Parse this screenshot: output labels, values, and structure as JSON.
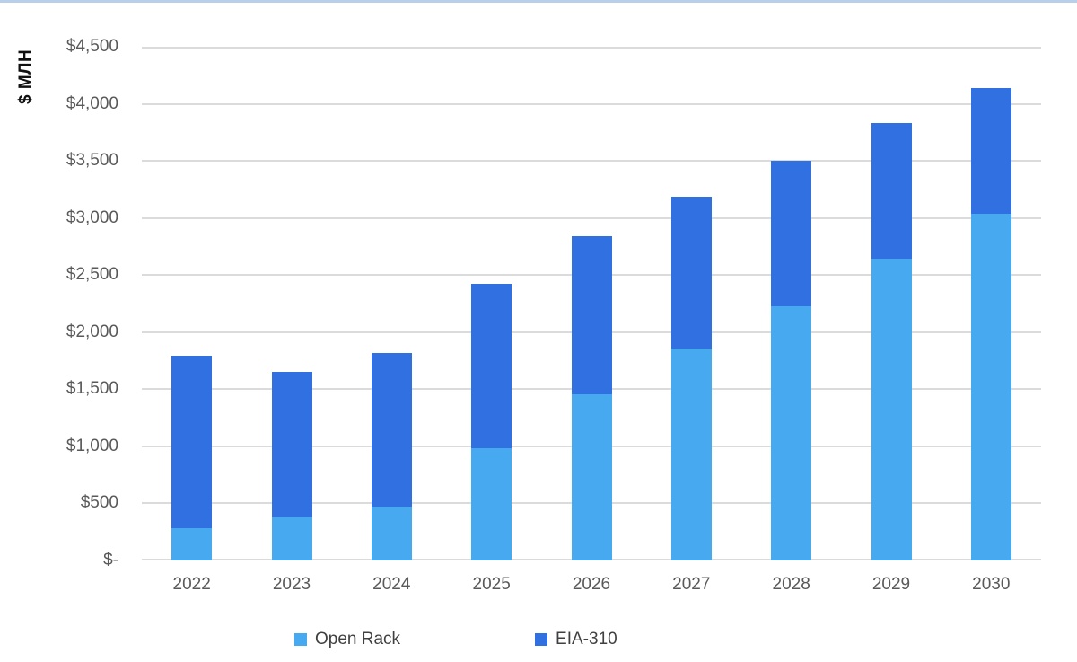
{
  "page": {
    "top_border_color": "#B9CFE9",
    "background": "#ffffff"
  },
  "chart_data": {
    "type": "bar",
    "stacked": true,
    "title": "",
    "ylabel": "$ МЛН",
    "xlabel": "",
    "grid": true,
    "legend_position": "bottom",
    "gridline_color": "#DBDBDB",
    "tick_color": "#595959",
    "y_min": 0,
    "y_max": 4500,
    "y_ticks": [
      "$4,500",
      "$4,000",
      "$3,500",
      "$3,000",
      "$2,500",
      "$2,000",
      "$1,500",
      "$1,000",
      "$500",
      "$-"
    ],
    "categories": [
      "2022",
      "2023",
      "2024",
      "2025",
      "2026",
      "2027",
      "2028",
      "2029",
      "2030"
    ],
    "series": [
      {
        "name": "Open Rack",
        "color": "#47AAF0",
        "values": [
          280,
          375,
          470,
          980,
          1455,
          1860,
          2225,
          2640,
          3040
        ]
      },
      {
        "name": "EIA-310",
        "color": "#3070E0",
        "values": [
          1515,
          1280,
          1345,
          1440,
          1385,
          1325,
          1275,
          1195,
          1100
        ]
      }
    ],
    "totals": [
      1795,
      1655,
      1815,
      2420,
      2840,
      3185,
      3500,
      3835,
      4140
    ]
  }
}
